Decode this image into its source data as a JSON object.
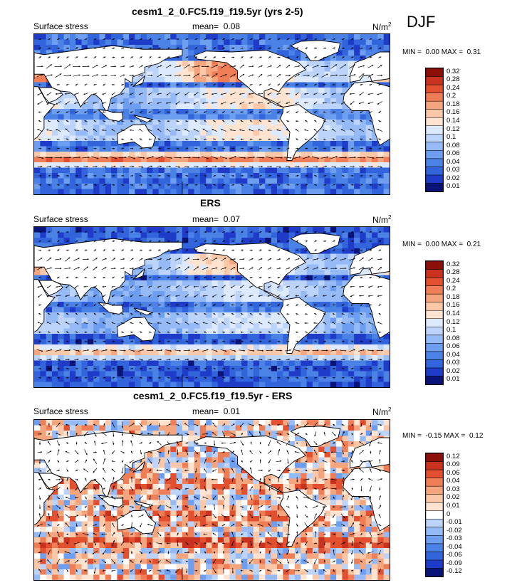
{
  "season": "DJF",
  "panels": [
    {
      "title": "cesm1_2_0.FC5.f19_f19.5yr (yrs 2-5)",
      "left_label": "Surface stress",
      "mean_label": "mean=",
      "mean_value": "0.08",
      "units": "N/m",
      "units_sup": "2",
      "min_label": "MIN =",
      "min_value": "0.00",
      "max_label": "MAX =",
      "max_value": "0.31",
      "colorbar": [
        "0.01",
        "0.02",
        "0.03",
        "0.04",
        "0.06",
        "0.08",
        "0.1",
        "0.12",
        "0.14",
        "0.16",
        "0.18",
        "0.2",
        "0.24",
        "0.28",
        "0.32"
      ],
      "colors": [
        "#0a1478",
        "#1e3cc8",
        "#3264dc",
        "#4b82e6",
        "#6e9ef0",
        "#96baf5",
        "#bcd4fa",
        "#dde9fc",
        "#fde3d0",
        "#fac8a8",
        "#f5a57d",
        "#ef7d55",
        "#e2502f",
        "#c8321e",
        "#8c0f0a"
      ]
    },
    {
      "title": "ERS",
      "left_label": "Surface stress",
      "mean_label": "mean=",
      "mean_value": "0.07",
      "units": "N/m",
      "units_sup": "2",
      "min_label": "MIN =",
      "min_value": "0.00",
      "max_label": "MAX =",
      "max_value": "0.21",
      "colorbar": [
        "0.01",
        "0.02",
        "0.03",
        "0.04",
        "0.06",
        "0.08",
        "0.1",
        "0.12",
        "0.14",
        "0.16",
        "0.18",
        "0.2",
        "0.24",
        "0.28",
        "0.32"
      ],
      "colors": [
        "#0a1478",
        "#1e3cc8",
        "#3264dc",
        "#4b82e6",
        "#6e9ef0",
        "#96baf5",
        "#bcd4fa",
        "#dde9fc",
        "#fde3d0",
        "#fac8a8",
        "#f5a57d",
        "#ef7d55",
        "#e2502f",
        "#c8321e",
        "#8c0f0a"
      ]
    },
    {
      "title": "cesm1_2_0.FC5.f19_f19.5yr - ERS",
      "left_label": "Surface stress",
      "mean_label": "mean=",
      "mean_value": "0.01",
      "units": "N/m",
      "units_sup": "2",
      "min_label": "MIN =",
      "min_value": "-0.15",
      "max_label": "MAX =",
      "max_value": "0.12",
      "colorbar": [
        "-0.12",
        "-0.09",
        "-0.06",
        "-0.04",
        "-0.03",
        "-0.02",
        "-0.01",
        "0",
        "0.01",
        "0.02",
        "0.03",
        "0.04",
        "0.06",
        "0.09",
        "0.12"
      ],
      "colors": [
        "#0a1478",
        "#1e3cc8",
        "#3264dc",
        "#4b82e6",
        "#6e9ef0",
        "#96baf5",
        "#bcd4fa",
        "#ffffff",
        "#fde3d0",
        "#fac8a8",
        "#f5a57d",
        "#ef7d55",
        "#e2502f",
        "#c8321e",
        "#8c0f0a"
      ]
    }
  ],
  "chart_data": [
    {
      "type": "heatmap",
      "title": "cesm1_2_0.FC5.f19_f19.5yr (yrs 2-5)",
      "variable": "Surface stress",
      "units": "N/m2",
      "mean": 0.08,
      "min": 0.0,
      "max": 0.31,
      "levels": [
        0.01,
        0.02,
        0.03,
        0.04,
        0.06,
        0.08,
        0.1,
        0.12,
        0.14,
        0.16,
        0.18,
        0.2,
        0.24,
        0.28,
        0.32
      ]
    },
    {
      "type": "heatmap",
      "title": "ERS",
      "variable": "Surface stress",
      "units": "N/m2",
      "mean": 0.07,
      "min": 0.0,
      "max": 0.21,
      "levels": [
        0.01,
        0.02,
        0.03,
        0.04,
        0.06,
        0.08,
        0.1,
        0.12,
        0.14,
        0.16,
        0.18,
        0.2,
        0.24,
        0.28,
        0.32
      ]
    },
    {
      "type": "heatmap",
      "title": "cesm1_2_0.FC5.f19_f19.5yr - ERS",
      "variable": "Surface stress",
      "units": "N/m2",
      "mean": 0.01,
      "min": -0.15,
      "max": 0.12,
      "levels": [
        -0.12,
        -0.09,
        -0.06,
        -0.04,
        -0.03,
        -0.02,
        -0.01,
        0,
        0.01,
        0.02,
        0.03,
        0.04,
        0.06,
        0.09,
        0.12
      ]
    }
  ]
}
